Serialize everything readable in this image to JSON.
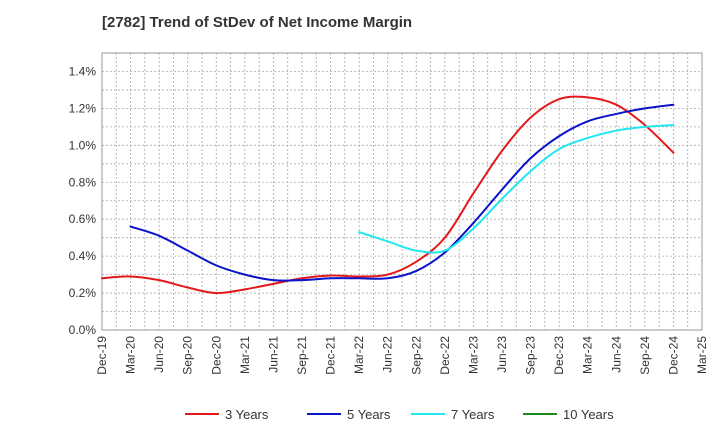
{
  "chart_data": {
    "type": "line",
    "title": "[2782]  Trend of StDev of Net Income Margin",
    "xlabel": "",
    "ylabel": "",
    "x": [
      "Dec-19",
      "Mar-20",
      "Jun-20",
      "Sep-20",
      "Dec-20",
      "Mar-21",
      "Jun-21",
      "Sep-21",
      "Dec-21",
      "Mar-22",
      "Jun-22",
      "Sep-22",
      "Dec-22",
      "Mar-23",
      "Jun-23",
      "Sep-23",
      "Dec-23",
      "Mar-24",
      "Jun-24",
      "Sep-24",
      "Dec-24",
      "Mar-25"
    ],
    "y_ticks": [
      "0.0%",
      "0.2%",
      "0.4%",
      "0.6%",
      "0.8%",
      "1.0%",
      "1.2%",
      "1.4%"
    ],
    "ylim": [
      0,
      1.5
    ],
    "y_unit": "%",
    "grid": true,
    "legend_position": "bottom",
    "series": [
      {
        "name": "3 Years",
        "color": "#e31a1c",
        "values": [
          0.28,
          0.29,
          0.27,
          0.23,
          0.2,
          0.22,
          0.25,
          0.28,
          0.295,
          0.29,
          0.3,
          0.37,
          0.5,
          0.74,
          0.97,
          1.15,
          1.25,
          1.26,
          1.22,
          1.11,
          0.96,
          null
        ]
      },
      {
        "name": "5 Years",
        "color": "#0a14c8",
        "values": [
          null,
          0.56,
          0.51,
          0.43,
          0.35,
          0.3,
          0.27,
          0.27,
          0.28,
          0.28,
          0.28,
          0.32,
          0.42,
          0.58,
          0.76,
          0.93,
          1.05,
          1.13,
          1.17,
          1.2,
          1.22,
          null
        ]
      },
      {
        "name": "7 Years",
        "color": "#22e6f0",
        "values": [
          null,
          null,
          null,
          null,
          null,
          null,
          null,
          null,
          null,
          0.53,
          0.48,
          0.43,
          0.43,
          0.55,
          0.71,
          0.86,
          0.98,
          1.04,
          1.08,
          1.1,
          1.11,
          null
        ]
      },
      {
        "name": "10 Years",
        "color": "#1a8a1a",
        "values": [
          null,
          null,
          null,
          null,
          null,
          null,
          null,
          null,
          null,
          null,
          null,
          null,
          null,
          null,
          null,
          null,
          null,
          null,
          null,
          null,
          null,
          null
        ]
      }
    ]
  }
}
